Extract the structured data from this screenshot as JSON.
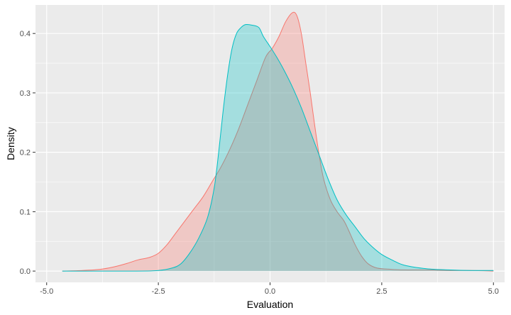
{
  "chart_data": {
    "type": "area",
    "title": "",
    "xlabel": "Evaluation",
    "ylabel": "Density",
    "xlim": [
      -5.25,
      5.25
    ],
    "ylim": [
      -0.019,
      0.448
    ],
    "x_ticks": [
      -5.0,
      -2.5,
      0.0,
      2.5,
      5.0
    ],
    "x_tick_labels": [
      "-5.0",
      "-2.5",
      "0.0",
      "2.5",
      "5.0"
    ],
    "y_ticks": [
      0.0,
      0.1,
      0.2,
      0.3,
      0.4
    ],
    "y_tick_labels": [
      "0.0",
      "0.1",
      "0.2",
      "0.3",
      "0.4"
    ],
    "grid": true,
    "legend": "none",
    "series": [
      {
        "color": "#F8766D",
        "fill": "#F8766D",
        "fill_opacity": 0.3,
        "points": [
          [
            -4.65,
            0.0
          ],
          [
            -4.2,
            0.001
          ],
          [
            -3.8,
            0.003
          ],
          [
            -3.5,
            0.007
          ],
          [
            -3.2,
            0.013
          ],
          [
            -2.95,
            0.019
          ],
          [
            -2.7,
            0.023
          ],
          [
            -2.5,
            0.03
          ],
          [
            -2.3,
            0.045
          ],
          [
            -2.1,
            0.065
          ],
          [
            -1.9,
            0.085
          ],
          [
            -1.7,
            0.105
          ],
          [
            -1.5,
            0.125
          ],
          [
            -1.3,
            0.15
          ],
          [
            -1.1,
            0.175
          ],
          [
            -0.9,
            0.205
          ],
          [
            -0.7,
            0.24
          ],
          [
            -0.5,
            0.28
          ],
          [
            -0.3,
            0.32
          ],
          [
            -0.1,
            0.36
          ],
          [
            0.05,
            0.375
          ],
          [
            0.2,
            0.395
          ],
          [
            0.35,
            0.42
          ],
          [
            0.5,
            0.435
          ],
          [
            0.6,
            0.43
          ],
          [
            0.7,
            0.4
          ],
          [
            0.8,
            0.35
          ],
          [
            0.9,
            0.3
          ],
          [
            1.0,
            0.245
          ],
          [
            1.1,
            0.195
          ],
          [
            1.2,
            0.155
          ],
          [
            1.35,
            0.12
          ],
          [
            1.5,
            0.1
          ],
          [
            1.65,
            0.085
          ],
          [
            1.75,
            0.07
          ],
          [
            1.9,
            0.045
          ],
          [
            2.05,
            0.025
          ],
          [
            2.2,
            0.012
          ],
          [
            2.4,
            0.005
          ],
          [
            2.7,
            0.003
          ],
          [
            3.0,
            0.002
          ],
          [
            3.5,
            0.002
          ],
          [
            4.0,
            0.001
          ],
          [
            4.5,
            0.001
          ],
          [
            5.0,
            0.0
          ]
        ]
      },
      {
        "color": "#00BFC4",
        "fill": "#00BFC4",
        "fill_opacity": 0.3,
        "points": [
          [
            -4.65,
            0.0
          ],
          [
            -3.0,
            0.0
          ],
          [
            -2.5,
            0.001
          ],
          [
            -2.2,
            0.005
          ],
          [
            -2.0,
            0.012
          ],
          [
            -1.8,
            0.03
          ],
          [
            -1.6,
            0.055
          ],
          [
            -1.4,
            0.09
          ],
          [
            -1.25,
            0.14
          ],
          [
            -1.15,
            0.2
          ],
          [
            -1.05,
            0.27
          ],
          [
            -0.95,
            0.33
          ],
          [
            -0.85,
            0.375
          ],
          [
            -0.75,
            0.4
          ],
          [
            -0.65,
            0.41
          ],
          [
            -0.55,
            0.415
          ],
          [
            -0.4,
            0.414
          ],
          [
            -0.25,
            0.41
          ],
          [
            -0.15,
            0.395
          ],
          [
            0.0,
            0.378
          ],
          [
            0.15,
            0.36
          ],
          [
            0.3,
            0.34
          ],
          [
            0.5,
            0.31
          ],
          [
            0.7,
            0.275
          ],
          [
            0.9,
            0.235
          ],
          [
            1.1,
            0.195
          ],
          [
            1.3,
            0.155
          ],
          [
            1.5,
            0.12
          ],
          [
            1.7,
            0.095
          ],
          [
            1.9,
            0.075
          ],
          [
            2.1,
            0.055
          ],
          [
            2.3,
            0.04
          ],
          [
            2.5,
            0.028
          ],
          [
            2.75,
            0.018
          ],
          [
            3.0,
            0.01
          ],
          [
            3.5,
            0.004
          ],
          [
            4.0,
            0.002
          ],
          [
            4.5,
            0.001
          ],
          [
            5.0,
            0.001
          ]
        ]
      }
    ]
  }
}
